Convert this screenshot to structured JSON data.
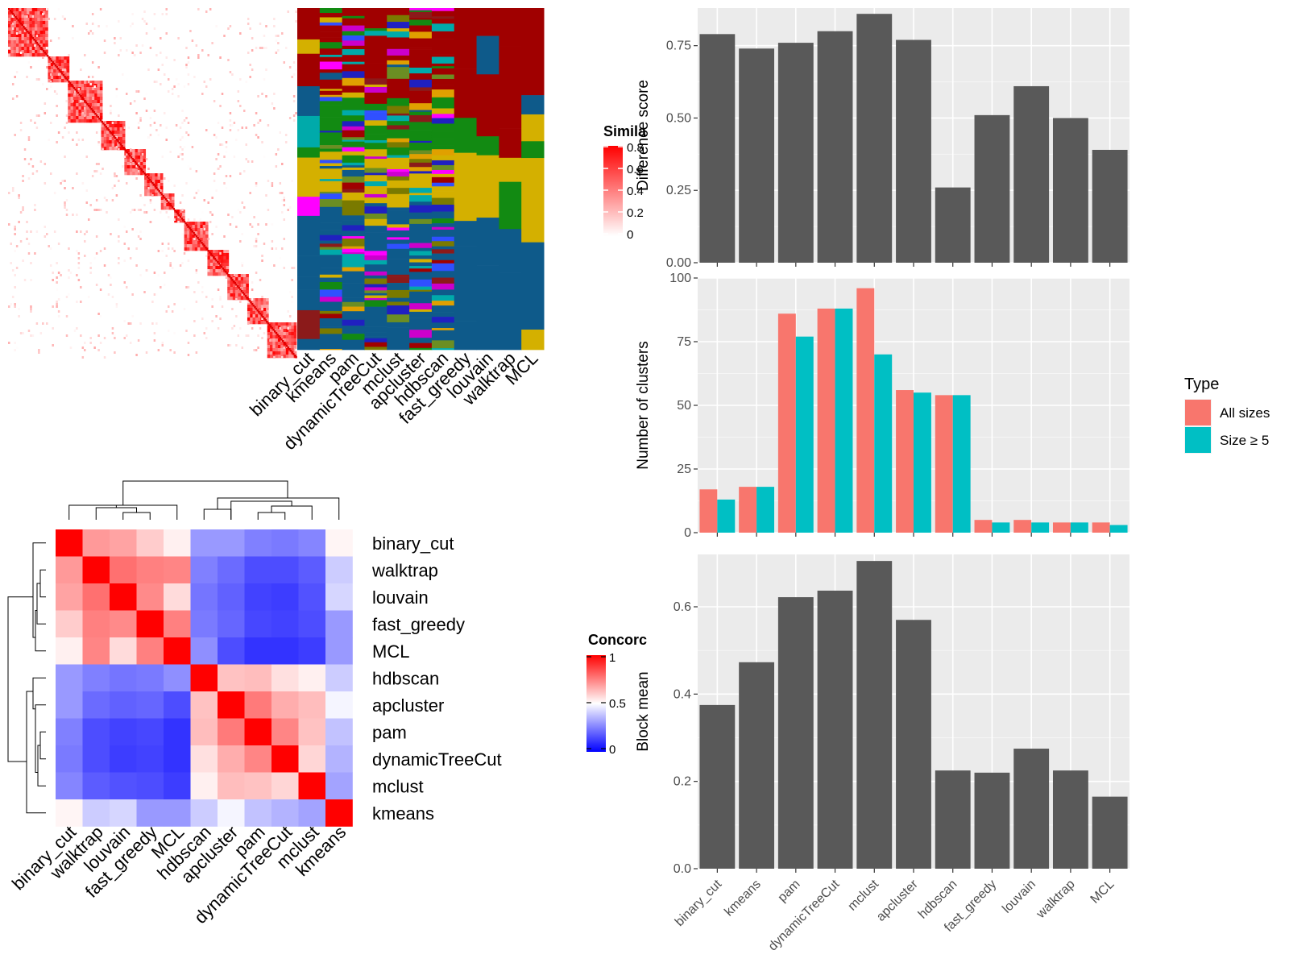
{
  "methods_order": [
    "binary_cut",
    "kmeans",
    "pam",
    "dynamicTreeCut",
    "mclust",
    "apcluster",
    "hdbscan",
    "fast_greedy",
    "louvain",
    "walktrap",
    "MCL"
  ],
  "similarity_legend": {
    "title": "Simila",
    "ticks": [
      "0.8",
      "0.6",
      "0.4",
      "0.2",
      "0"
    ],
    "colors": [
      "#ffffff",
      "#ff0000"
    ]
  },
  "concordance": {
    "legend_title": "Concorc",
    "legend_ticks": [
      "1",
      "0.5",
      "0"
    ],
    "colors": {
      "low": "#0000ff",
      "mid": "#ffffff",
      "high": "#ff0000"
    },
    "order": [
      "binary_cut",
      "walktrap",
      "louvain",
      "fast_greedy",
      "MCL",
      "hdbscan",
      "apcluster",
      "pam",
      "dynamicTreeCut",
      "mclust",
      "kmeans"
    ],
    "matrix": [
      [
        1.0,
        0.7,
        0.68,
        0.6,
        0.53,
        0.3,
        0.3,
        0.25,
        0.24,
        0.26,
        0.52
      ],
      [
        0.7,
        1.0,
        0.78,
        0.75,
        0.74,
        0.25,
        0.21,
        0.15,
        0.15,
        0.18,
        0.4
      ],
      [
        0.68,
        0.78,
        1.0,
        0.73,
        0.57,
        0.23,
        0.19,
        0.13,
        0.12,
        0.16,
        0.42
      ],
      [
        0.6,
        0.75,
        0.73,
        1.0,
        0.75,
        0.24,
        0.2,
        0.14,
        0.13,
        0.15,
        0.3
      ],
      [
        0.53,
        0.74,
        0.57,
        0.75,
        1.0,
        0.28,
        0.15,
        0.1,
        0.1,
        0.12,
        0.3
      ],
      [
        0.3,
        0.25,
        0.23,
        0.24,
        0.28,
        1.0,
        0.62,
        0.63,
        0.56,
        0.53,
        0.4
      ],
      [
        0.3,
        0.21,
        0.19,
        0.2,
        0.15,
        0.62,
        1.0,
        0.76,
        0.66,
        0.63,
        0.48
      ],
      [
        0.25,
        0.15,
        0.13,
        0.14,
        0.1,
        0.63,
        0.76,
        1.0,
        0.74,
        0.62,
        0.38
      ],
      [
        0.24,
        0.15,
        0.12,
        0.13,
        0.1,
        0.56,
        0.66,
        0.74,
        1.0,
        0.58,
        0.35
      ],
      [
        0.26,
        0.18,
        0.16,
        0.15,
        0.12,
        0.53,
        0.63,
        0.62,
        0.58,
        1.0,
        0.32
      ],
      [
        0.52,
        0.4,
        0.42,
        0.3,
        0.3,
        0.4,
        0.48,
        0.38,
        0.35,
        0.32,
        1.0
      ]
    ]
  },
  "chart_data": [
    {
      "type": "heatmap",
      "title": "",
      "note": "similarity matrix of terms with cluster assignment columns",
      "columns": [
        "binary_cut",
        "kmeans",
        "pam",
        "dynamicTreeCut",
        "mclust",
        "apcluster",
        "hdbscan",
        "fast_greedy",
        "louvain",
        "walktrap",
        "MCL"
      ]
    },
    {
      "type": "bar",
      "categories": [
        "binary_cut",
        "kmeans",
        "pam",
        "dynamicTreeCut",
        "mclust",
        "apcluster",
        "hdbscan",
        "fast_greedy",
        "louvain",
        "walktrap",
        "MCL"
      ],
      "values": [
        0.79,
        0.74,
        0.76,
        0.8,
        0.86,
        0.77,
        0.26,
        0.51,
        0.61,
        0.5,
        0.39
      ],
      "ylabel": "Difference score",
      "ylim": [
        0,
        0.88
      ],
      "yticks": [
        "0.00",
        "0.25",
        "0.50",
        "0.75"
      ],
      "yticks_num": [
        0,
        0.25,
        0.5,
        0.75
      ],
      "bar_color": "#595959"
    },
    {
      "type": "bar",
      "categories": [
        "binary_cut",
        "kmeans",
        "pam",
        "dynamicTreeCut",
        "mclust",
        "apcluster",
        "hdbscan",
        "fast_greedy",
        "louvain",
        "walktrap",
        "MCL"
      ],
      "series": [
        {
          "name": "All sizes",
          "color": "#f8766d",
          "values": [
            17,
            18,
            86,
            88,
            96,
            56,
            54,
            5,
            5,
            4,
            4
          ]
        },
        {
          "name": "Size ≥ 5",
          "color": "#00bfc4",
          "values": [
            13,
            18,
            77,
            88,
            70,
            55,
            54,
            4,
            4,
            4,
            3
          ]
        }
      ],
      "ylabel": "Number of clusters",
      "ylim": [
        0,
        100
      ],
      "yticks": [
        "0",
        "25",
        "50",
        "75",
        "100"
      ],
      "yticks_num": [
        0,
        25,
        50,
        75,
        100
      ],
      "legend_title": "Type",
      "legend_position": "right"
    },
    {
      "type": "bar",
      "categories": [
        "binary_cut",
        "kmeans",
        "pam",
        "dynamicTreeCut",
        "mclust",
        "apcluster",
        "hdbscan",
        "fast_greedy",
        "louvain",
        "walktrap",
        "MCL"
      ],
      "values": [
        0.375,
        0.473,
        0.622,
        0.637,
        0.705,
        0.57,
        0.225,
        0.22,
        0.275,
        0.225,
        0.165
      ],
      "ylabel": "Block mean",
      "ylim": [
        0,
        0.72
      ],
      "yticks": [
        "0.0",
        "0.2",
        "0.4",
        "0.6"
      ],
      "yticks_num": [
        0,
        0.2,
        0.4,
        0.6
      ],
      "bar_color": "#595959"
    }
  ]
}
